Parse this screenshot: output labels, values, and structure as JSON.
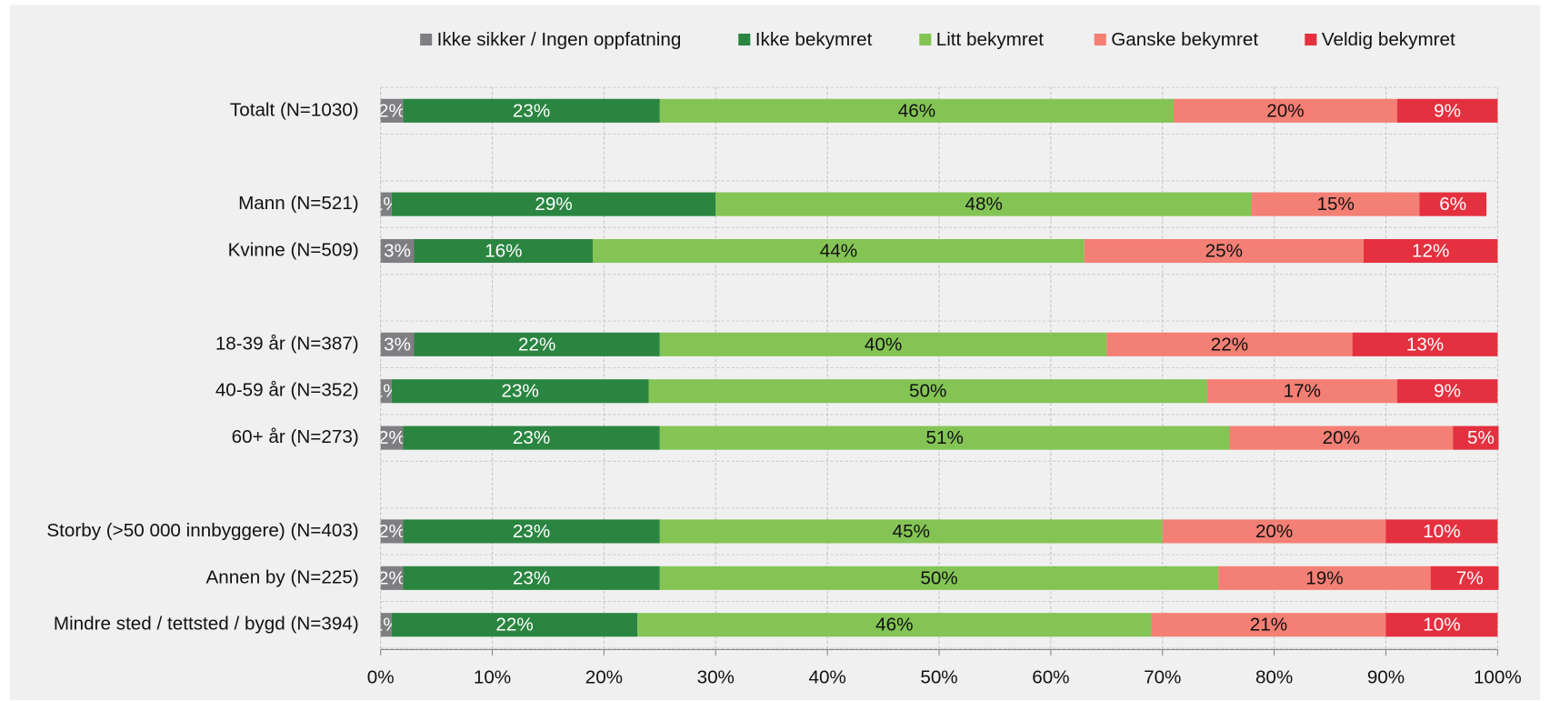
{
  "chart_data": {
    "type": "stacked_bar_horizontal",
    "categories": [
      "Totalt (N=1030)",
      null,
      "Mann (N=521)",
      "Kvinne (N=509)",
      null,
      "18-39 år (N=387)",
      "40-59 år (N=352)",
      "60+ år (N=273)",
      null,
      "Storby (>50 000 innbyggere) (N=403)",
      "Annen by (N=225)",
      "Mindre sted / tettsted / bygd (N=394)"
    ],
    "series": [
      {
        "name": "Ikke sikker / Ingen oppfatning",
        "color": "#7f7f83",
        "label_color": "#ffffff",
        "values": [
          2,
          null,
          1,
          3,
          null,
          3,
          1,
          2,
          null,
          2,
          2,
          1
        ],
        "value_labels": [
          "2%",
          null,
          "1%",
          "3%",
          null,
          "3%",
          "1%",
          "2%",
          null,
          "2%",
          "2%",
          "1%"
        ]
      },
      {
        "name": "Ikke bekymret",
        "color": "#2a8540",
        "label_color": "#ffffff",
        "values": [
          23,
          null,
          29,
          16,
          null,
          22,
          23,
          23,
          null,
          23,
          23,
          22
        ],
        "value_labels": [
          "23%",
          null,
          "29%",
          "16%",
          null,
          "22%",
          "23%",
          "23%",
          null,
          "23%",
          "23%",
          "22%"
        ]
      },
      {
        "name": "Litt bekymret",
        "color": "#84c455",
        "label_color": "#111111",
        "values": [
          46,
          null,
          48,
          44,
          null,
          40,
          50,
          51,
          null,
          45,
          50,
          46
        ],
        "value_labels": [
          "46%",
          null,
          "48%",
          "44%",
          null,
          "40%",
          "50%",
          "51%",
          null,
          "45%",
          "50%",
          "46%"
        ]
      },
      {
        "name": "Ganske bekymret",
        "color": "#f47f74",
        "label_color": "#111111",
        "values": [
          20,
          null,
          15,
          25,
          null,
          22,
          17,
          20,
          null,
          20,
          19,
          21
        ],
        "value_labels": [
          "20%",
          null,
          "15%",
          "25%",
          null,
          "22%",
          "17%",
          "20%",
          null,
          "20%",
          "19%",
          "21%"
        ]
      },
      {
        "name": "Veldig bekymret",
        "color": "#e4303f",
        "label_color": "#ffffff",
        "values": [
          9,
          null,
          6,
          12,
          null,
          13,
          9,
          5,
          null,
          10,
          7,
          10
        ],
        "value_labels": [
          "9%",
          null,
          "6%",
          "12%",
          null,
          "13%",
          "9%",
          "5%",
          null,
          "10%",
          "7%",
          "10%"
        ]
      }
    ],
    "xlim": [
      0,
      100
    ],
    "xticks": [
      {
        "value": 0,
        "label": "0%"
      },
      {
        "value": 10,
        "label": "10%"
      },
      {
        "value": 20,
        "label": "20%"
      },
      {
        "value": 30,
        "label": "30%"
      },
      {
        "value": 40,
        "label": "40%"
      },
      {
        "value": 50,
        "label": "50%"
      },
      {
        "value": 60,
        "label": "60%"
      },
      {
        "value": 70,
        "label": "70%"
      },
      {
        "value": 80,
        "label": "80%"
      },
      {
        "value": 90,
        "label": "90%"
      },
      {
        "value": 100,
        "label": "100%"
      }
    ],
    "grid": true,
    "legend": "top"
  }
}
